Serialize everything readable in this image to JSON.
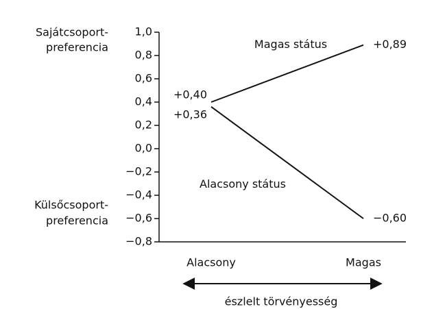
{
  "chart_data": {
    "type": "line",
    "categories": [
      "Alacsony",
      "Magas"
    ],
    "series": [
      {
        "name": "Magas státus",
        "color": "#111111",
        "values": [
          0.4,
          0.89
        ],
        "value_labels": [
          "+0,40",
          "+0,89"
        ]
      },
      {
        "name": "Alacsony státus",
        "color": "#111111",
        "values": [
          0.36,
          -0.6
        ],
        "value_labels": [
          "+0,36",
          "−0,60"
        ]
      }
    ],
    "ylim": [
      -0.8,
      1.0
    ],
    "yticks": [
      {
        "value": 1.0,
        "label": "1,0"
      },
      {
        "value": 0.8,
        "label": "0,8"
      },
      {
        "value": 0.6,
        "label": "0,6"
      },
      {
        "value": 0.4,
        "label": "0,4"
      },
      {
        "value": 0.2,
        "label": "0,2"
      },
      {
        "value": 0,
        "label": "0,0"
      },
      {
        "value": -0.2,
        "label": "−0,2"
      },
      {
        "value": -0.4,
        "label": "−0,4"
      },
      {
        "value": -0.6,
        "label": "−0,6"
      },
      {
        "value": -0.8,
        "label": "−0,8"
      }
    ],
    "top_label": [
      "Sajátcsoport-",
      "preferencia"
    ],
    "bottom_label": [
      "Külsőcsoport-",
      "preferencia"
    ],
    "xlabel": "észlelt törvényesség"
  }
}
